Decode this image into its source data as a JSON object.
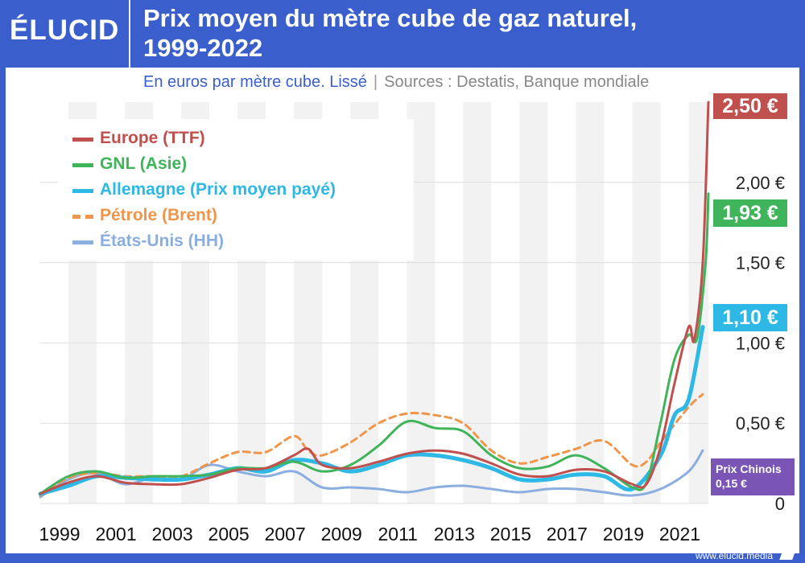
{
  "brand": {
    "logo": "ÉLUCID",
    "footer": "www.elucid.media"
  },
  "header": {
    "title_line1": "Prix moyen du mètre cube de gaz naturel,",
    "title_line2": "1999-2022"
  },
  "subtitle": {
    "text": "En euros par mètre cube. Lissé",
    "separator": "|",
    "sources": "Sources : Destatis, Banque mondiale"
  },
  "colors": {
    "brand_blue": "#3a5fcd",
    "europe": "#c0504d",
    "gnl": "#3fb45a",
    "allemagne": "#2eb8e6",
    "petrole": "#f0954a",
    "usa": "#8aaee0",
    "chine": "#7b55b5"
  },
  "tags": {
    "europe": "2,50 €",
    "gnl": "1,93 €",
    "allemagne": "1,10 €",
    "chine_label": "Prix Chinois",
    "chine_value": "0,15 €"
  },
  "chart_data": {
    "type": "line",
    "title": "Prix moyen du mètre cube de gaz naturel, 1999-2022",
    "ylabel": "En euros par mètre cube",
    "xlim": [
      1999,
      2022.7
    ],
    "ylim": [
      0,
      2.5
    ],
    "x_ticks": [
      1999,
      2001,
      2003,
      2005,
      2007,
      2009,
      2011,
      2013,
      2015,
      2017,
      2019,
      2021
    ],
    "x_tick_labels": [
      "1999",
      "2001",
      "2003",
      "2005",
      "2007",
      "2009",
      "2011",
      "2013",
      "2015",
      "2017",
      "2019",
      "2021"
    ],
    "y_ticks": [
      0,
      0.5,
      1.0,
      1.5,
      2.0
    ],
    "y_tick_labels": [
      "0",
      "0,50 €",
      "1,00 €",
      "1,50 €",
      "2,00 €"
    ],
    "series": [
      {
        "key": "europe",
        "name": "Europe (TTF)",
        "style": "solid",
        "points": [
          [
            1999,
            0.06
          ],
          [
            2000,
            0.13
          ],
          [
            2001,
            0.17
          ],
          [
            2002,
            0.13
          ],
          [
            2003,
            0.12
          ],
          [
            2004,
            0.12
          ],
          [
            2005,
            0.16
          ],
          [
            2006,
            0.21
          ],
          [
            2007,
            0.22
          ],
          [
            2008,
            0.3
          ],
          [
            2008.5,
            0.34
          ],
          [
            2009,
            0.24
          ],
          [
            2010,
            0.22
          ],
          [
            2011,
            0.26
          ],
          [
            2012,
            0.31
          ],
          [
            2013,
            0.33
          ],
          [
            2014,
            0.31
          ],
          [
            2015,
            0.25
          ],
          [
            2016,
            0.18
          ],
          [
            2017,
            0.17
          ],
          [
            2018,
            0.21
          ],
          [
            2019,
            0.2
          ],
          [
            2020,
            0.12
          ],
          [
            2020.5,
            0.12
          ],
          [
            2021,
            0.35
          ],
          [
            2021.5,
            0.75
          ],
          [
            2022,
            1.1
          ],
          [
            2022.2,
            1.02
          ],
          [
            2022.5,
            1.5
          ],
          [
            2022.7,
            2.5
          ]
        ]
      },
      {
        "key": "gnl",
        "name": "GNL (Asie)",
        "style": "solid",
        "points": [
          [
            1999,
            0.06
          ],
          [
            2000,
            0.17
          ],
          [
            2001,
            0.2
          ],
          [
            2002,
            0.16
          ],
          [
            2003,
            0.17
          ],
          [
            2004,
            0.17
          ],
          [
            2005,
            0.18
          ],
          [
            2006,
            0.22
          ],
          [
            2007,
            0.22
          ],
          [
            2008,
            0.26
          ],
          [
            2009,
            0.2
          ],
          [
            2010,
            0.24
          ],
          [
            2011,
            0.36
          ],
          [
            2012,
            0.51
          ],
          [
            2013,
            0.47
          ],
          [
            2014,
            0.45
          ],
          [
            2015,
            0.3
          ],
          [
            2016,
            0.22
          ],
          [
            2017,
            0.23
          ],
          [
            2018,
            0.3
          ],
          [
            2019,
            0.22
          ],
          [
            2020,
            0.1
          ],
          [
            2020.5,
            0.13
          ],
          [
            2021,
            0.5
          ],
          [
            2021.5,
            0.9
          ],
          [
            2022,
            1.05
          ],
          [
            2022.3,
            1.03
          ],
          [
            2022.6,
            1.5
          ],
          [
            2022.7,
            1.93
          ]
        ]
      },
      {
        "key": "allemagne",
        "name": "Allemagne (Prix moyen payé)",
        "style": "solid",
        "points": [
          [
            1999,
            0.06
          ],
          [
            2000,
            0.11
          ],
          [
            2001,
            0.17
          ],
          [
            2002,
            0.16
          ],
          [
            2003,
            0.15
          ],
          [
            2004,
            0.15
          ],
          [
            2005,
            0.18
          ],
          [
            2006,
            0.22
          ],
          [
            2007,
            0.2
          ],
          [
            2008,
            0.27
          ],
          [
            2009,
            0.25
          ],
          [
            2010,
            0.2
          ],
          [
            2011,
            0.24
          ],
          [
            2012,
            0.3
          ],
          [
            2013,
            0.3
          ],
          [
            2014,
            0.27
          ],
          [
            2015,
            0.22
          ],
          [
            2016,
            0.15
          ],
          [
            2017,
            0.15
          ],
          [
            2018,
            0.18
          ],
          [
            2019,
            0.17
          ],
          [
            2020,
            0.09
          ],
          [
            2021,
            0.3
          ],
          [
            2021.5,
            0.55
          ],
          [
            2022,
            0.65
          ],
          [
            2022.5,
            1.1
          ]
        ]
      },
      {
        "key": "petrole",
        "name": "Pétrole (Brent)",
        "style": "dashed",
        "points": [
          [
            1999,
            0.05
          ],
          [
            2000,
            0.16
          ],
          [
            2001,
            0.19
          ],
          [
            2002,
            0.17
          ],
          [
            2003,
            0.17
          ],
          [
            2004,
            0.17
          ],
          [
            2005,
            0.25
          ],
          [
            2006,
            0.32
          ],
          [
            2007,
            0.32
          ],
          [
            2008,
            0.42
          ],
          [
            2008.5,
            0.33
          ],
          [
            2009,
            0.3
          ],
          [
            2010,
            0.38
          ],
          [
            2011,
            0.5
          ],
          [
            2012,
            0.56
          ],
          [
            2013,
            0.55
          ],
          [
            2014,
            0.5
          ],
          [
            2015,
            0.33
          ],
          [
            2016,
            0.25
          ],
          [
            2017,
            0.29
          ],
          [
            2018,
            0.34
          ],
          [
            2019,
            0.39
          ],
          [
            2020,
            0.24
          ],
          [
            2020.5,
            0.26
          ],
          [
            2021,
            0.38
          ],
          [
            2022,
            0.6
          ],
          [
            2022.5,
            0.68
          ]
        ]
      },
      {
        "key": "usa",
        "name": "États-Unis (HH)",
        "style": "solid",
        "points": [
          [
            1999,
            0.04
          ],
          [
            2000,
            0.15
          ],
          [
            2001,
            0.19
          ],
          [
            2002,
            0.12
          ],
          [
            2003,
            0.16
          ],
          [
            2004,
            0.15
          ],
          [
            2005,
            0.24
          ],
          [
            2006,
            0.2
          ],
          [
            2007,
            0.17
          ],
          [
            2008,
            0.2
          ],
          [
            2009,
            0.1
          ],
          [
            2010,
            0.1
          ],
          [
            2011,
            0.09
          ],
          [
            2012,
            0.07
          ],
          [
            2013,
            0.1
          ],
          [
            2014,
            0.11
          ],
          [
            2015,
            0.09
          ],
          [
            2016,
            0.07
          ],
          [
            2017,
            0.09
          ],
          [
            2018,
            0.09
          ],
          [
            2019,
            0.07
          ],
          [
            2020,
            0.05
          ],
          [
            2021,
            0.09
          ],
          [
            2022,
            0.2
          ],
          [
            2022.5,
            0.33
          ]
        ]
      }
    ]
  }
}
